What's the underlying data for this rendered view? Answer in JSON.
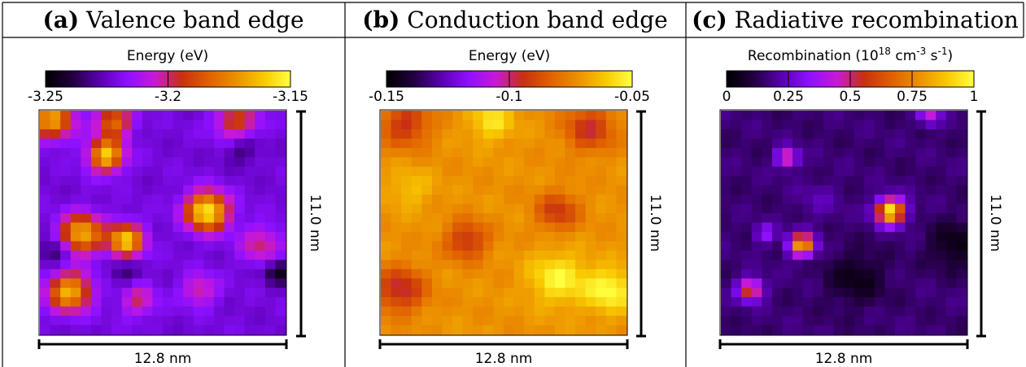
{
  "colormap": [
    "#000000",
    "#220040",
    "#5a00b0",
    "#8c10ff",
    "#c818d8",
    "#c83010",
    "#e06000",
    "#ec9000",
    "#f8c800",
    "#ffff40"
  ],
  "chart_data": [
    {
      "type": "heatmap",
      "label": "(a)",
      "title": "Valence band edge",
      "colorbar_title": "Energy (eV)",
      "colorbar_ticks": [
        "-3.25",
        "-3.2",
        "-3.15"
      ],
      "zlim": [
        -3.25,
        -3.15
      ],
      "x_extent": "12.8 nm",
      "y_extent": "11.0 nm",
      "grid_size": [
        24,
        24
      ],
      "blobs": [
        {
          "x": 0.05,
          "y": 0.04,
          "value": -3.17,
          "sigma": 0.06
        },
        {
          "x": 0.3,
          "y": 0.05,
          "value": -3.18,
          "sigma": 0.05
        },
        {
          "x": 0.8,
          "y": 0.05,
          "value": -3.19,
          "sigma": 0.06
        },
        {
          "x": 0.27,
          "y": 0.2,
          "value": -3.16,
          "sigma": 0.05
        },
        {
          "x": 0.68,
          "y": 0.45,
          "value": -3.152,
          "sigma": 0.06
        },
        {
          "x": 0.17,
          "y": 0.55,
          "value": -3.165,
          "sigma": 0.06
        },
        {
          "x": 0.35,
          "y": 0.58,
          "value": -3.16,
          "sigma": 0.05
        },
        {
          "x": 0.12,
          "y": 0.81,
          "value": -3.165,
          "sigma": 0.06
        },
        {
          "x": 0.9,
          "y": 0.6,
          "value": -3.2,
          "sigma": 0.06
        },
        {
          "x": 0.4,
          "y": 0.85,
          "value": -3.2,
          "sigma": 0.05
        },
        {
          "x": 0.65,
          "y": 0.8,
          "value": -3.2,
          "sigma": 0.05
        },
        {
          "x": 0.06,
          "y": 0.63,
          "value": -3.24,
          "sigma": 0.04
        },
        {
          "x": 0.97,
          "y": 0.72,
          "value": -3.245,
          "sigma": 0.04
        },
        {
          "x": 0.82,
          "y": 0.17,
          "value": -3.235,
          "sigma": 0.05
        },
        {
          "x": 0.34,
          "y": 0.72,
          "value": -3.235,
          "sigma": 0.04
        }
      ],
      "base_value": -3.222
    },
    {
      "type": "heatmap",
      "label": "(b)",
      "title": "Conduction band edge",
      "colorbar_title": "Energy (eV)",
      "colorbar_ticks": [
        "-0.15",
        "-0.1",
        "-0.05"
      ],
      "zlim": [
        -0.15,
        -0.05
      ],
      "x_extent": "12.8 nm",
      "y_extent": "11.0 nm",
      "grid_size": [
        24,
        24
      ],
      "blobs": [
        {
          "x": 0.1,
          "y": 0.06,
          "value": -0.095,
          "sigma": 0.07
        },
        {
          "x": 0.85,
          "y": 0.08,
          "value": -0.095,
          "sigma": 0.07
        },
        {
          "x": 0.72,
          "y": 0.45,
          "value": -0.093,
          "sigma": 0.06
        },
        {
          "x": 0.35,
          "y": 0.58,
          "value": -0.095,
          "sigma": 0.06
        },
        {
          "x": 0.08,
          "y": 0.8,
          "value": -0.098,
          "sigma": 0.07
        },
        {
          "x": 0.45,
          "y": 0.05,
          "value": -0.055,
          "sigma": 0.06
        },
        {
          "x": 0.72,
          "y": 0.75,
          "value": -0.052,
          "sigma": 0.08
        },
        {
          "x": 0.93,
          "y": 0.8,
          "value": -0.05,
          "sigma": 0.07
        },
        {
          "x": 0.12,
          "y": 0.35,
          "value": -0.062,
          "sigma": 0.06
        }
      ],
      "base_value": -0.072
    },
    {
      "type": "heatmap",
      "label": "(c)",
      "title": "Radiative recombination",
      "colorbar_title_main": "Recombination (10",
      "colorbar_title_exp1": "18",
      "colorbar_title_mid": " cm",
      "colorbar_title_exp2": "-3",
      "colorbar_title_mid2": " s",
      "colorbar_title_exp3": "-1",
      "colorbar_title_end": ")",
      "colorbar_ticks": [
        "0",
        "0.25",
        "0.5",
        "0.75",
        "1"
      ],
      "zlim": [
        0,
        1
      ],
      "x_extent": "12.8 nm",
      "y_extent": "11.0 nm",
      "grid_size": [
        24,
        24
      ],
      "blobs": [
        {
          "x": 0.69,
          "y": 0.45,
          "value": 0.98,
          "sigma": 0.04
        },
        {
          "x": 0.33,
          "y": 0.6,
          "value": 0.85,
          "sigma": 0.035
        },
        {
          "x": 0.12,
          "y": 0.8,
          "value": 0.62,
          "sigma": 0.035
        },
        {
          "x": 0.27,
          "y": 0.21,
          "value": 0.55,
          "sigma": 0.03
        },
        {
          "x": 0.18,
          "y": 0.55,
          "value": 0.35,
          "sigma": 0.03
        },
        {
          "x": 0.85,
          "y": 0.02,
          "value": 0.45,
          "sigma": 0.03
        },
        {
          "x": 0.95,
          "y": 0.6,
          "value": 0.03,
          "sigma": 0.07
        },
        {
          "x": 0.55,
          "y": 0.75,
          "value": 0.04,
          "sigma": 0.08
        },
        {
          "x": 0.4,
          "y": 0.4,
          "value": 0.22,
          "sigma": 0.06
        }
      ],
      "base_value": 0.16
    }
  ]
}
